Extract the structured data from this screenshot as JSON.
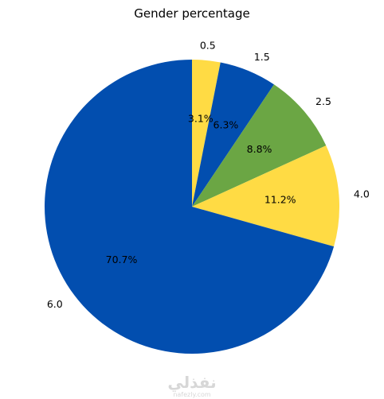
{
  "chart_data": {
    "type": "pie",
    "title": "Gender percentage",
    "slices": [
      {
        "label": "0.5",
        "percent_label": "3.1%",
        "value": 3.1,
        "color": "#ffdb44"
      },
      {
        "label": "1.5",
        "percent_label": "6.3%",
        "value": 6.3,
        "color": "#024eaf"
      },
      {
        "label": "2.5",
        "percent_label": "8.8%",
        "value": 8.8,
        "color": "#6ba644"
      },
      {
        "label": "4.0",
        "percent_label": "11.2%",
        "value": 11.2,
        "color": "#ffdb44"
      },
      {
        "label": "6.0",
        "percent_label": "70.7%",
        "value": 70.7,
        "color": "#024eaf"
      }
    ],
    "start_angle": "top",
    "direction": "clockwise"
  },
  "watermark": {
    "arabic": "نفذلي",
    "latin": "nafezly.com"
  }
}
